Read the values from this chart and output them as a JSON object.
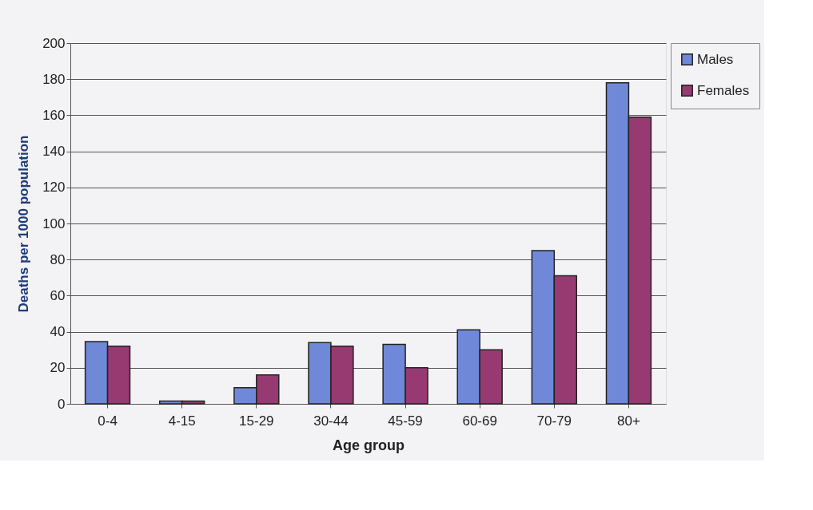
{
  "chart_data": {
    "type": "bar",
    "xlabel": "Age group",
    "ylabel": "Deaths per 1000 population",
    "categories": [
      "0-4",
      "4-15",
      "15-29",
      "30-44",
      "45-59",
      "60-69",
      "70-79",
      "80+"
    ],
    "series": [
      {
        "name": "Males",
        "color": "#7088d8",
        "values": [
          34.5,
          1.5,
          9,
          34,
          33,
          41,
          85,
          178
        ]
      },
      {
        "name": "Females",
        "color": "#983a72",
        "values": [
          32,
          1.5,
          16,
          32,
          20,
          30,
          71,
          159
        ]
      }
    ],
    "ylim": [
      0,
      200
    ],
    "yticks": [
      0,
      20,
      40,
      60,
      80,
      100,
      120,
      140,
      160,
      180,
      200
    ],
    "grid": "y",
    "legend": "right"
  }
}
